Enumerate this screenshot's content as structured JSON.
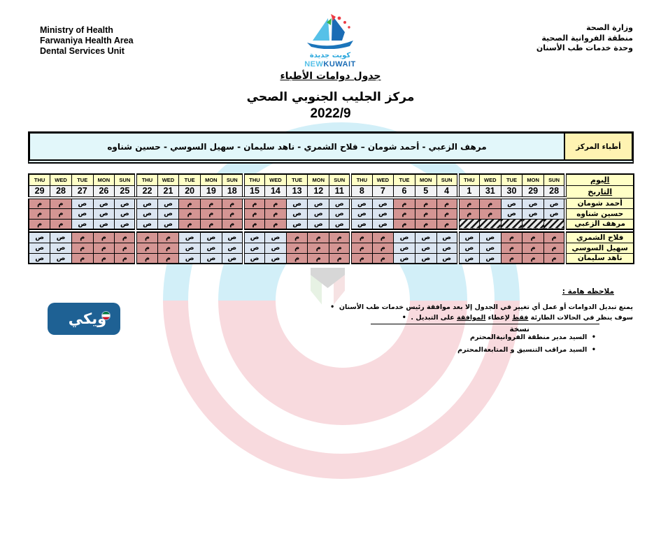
{
  "header": {
    "english_lines": [
      "Ministry of Health",
      "Farwaniya Health Area",
      "Dental Services Unit"
    ],
    "arabic_lines": [
      "وزارة الصحة",
      "منطقة الفروانية الصحية",
      "وحدة خدمات طب الأسنان"
    ],
    "logo": {
      "name": "New Kuwait",
      "arabic_text": "كويت جديدة",
      "latin_light": "NEW",
      "latin_bold": "KUWAIT"
    }
  },
  "titles": {
    "document_title": "جدول دوامات الأطباء",
    "center_name": "مركز الجليب الجنوبي الصحي",
    "period": "2022/9"
  },
  "doctors_bar": {
    "names": "مرهف الزعبي - أحمد شومان – فلاح الشمري - ناهد سليمان - سهيل السوسي - حسين شناوه",
    "label": "أطباء المركز"
  },
  "schedule": {
    "day_label": "اليوم",
    "date_label": "التاريخ",
    "day_names_group_ltr": [
      "THU",
      "WED",
      "TUE",
      "MON",
      "SUN"
    ],
    "groups": 5,
    "dates_ltr": [
      "29",
      "28",
      "27",
      "26",
      "25",
      "22",
      "21",
      "20",
      "19",
      "18",
      "15",
      "14",
      "13",
      "12",
      "11",
      "8",
      "7",
      "6",
      "5",
      "4",
      "1",
      "31",
      "30",
      "29",
      "28"
    ],
    "legend": {
      "morning": "ص",
      "evening": "م",
      "blocked_cell": "hatched"
    },
    "rows": [
      {
        "name": "أحمد شومان",
        "block": 1,
        "shifts_ltr": [
          "م",
          "م",
          "ص",
          "ص",
          "ص",
          "ص",
          "ص",
          "م",
          "م",
          "م",
          "م",
          "م",
          "ص",
          "ص",
          "ص",
          "ص",
          "ص",
          "م",
          "م",
          "م",
          "م",
          "م",
          "ص",
          "ص",
          "ص"
        ]
      },
      {
        "name": "حسين شناوه",
        "block": 1,
        "shifts_ltr": [
          "م",
          "م",
          "ص",
          "ص",
          "ص",
          "ص",
          "ص",
          "م",
          "م",
          "م",
          "م",
          "م",
          "ص",
          "ص",
          "ص",
          "ص",
          "ص",
          "م",
          "م",
          "م",
          "م",
          "م",
          "ص",
          "ص",
          "ص"
        ]
      },
      {
        "name": "مرهف الزعبي",
        "block": 1,
        "shifts_ltr": [
          "م",
          "م",
          "ص",
          "ص",
          "ص",
          "ص",
          "ص",
          "م",
          "م",
          "م",
          "م",
          "م",
          "ص",
          "ص",
          "ص",
          "ص",
          "ص",
          "م",
          "م",
          "م",
          "X",
          "X",
          "X",
          "X",
          "X"
        ]
      },
      {
        "name": "فلاح الشمري",
        "block": 2,
        "shifts_ltr": [
          "ص",
          "ص",
          "م",
          "م",
          "م",
          "م",
          "م",
          "ص",
          "ص",
          "ص",
          "ص",
          "ص",
          "م",
          "م",
          "م",
          "م",
          "م",
          "ص",
          "ص",
          "ص",
          "ص",
          "ص",
          "م",
          "م",
          "م"
        ]
      },
      {
        "name": "سهيل السوسي",
        "block": 2,
        "shifts_ltr": [
          "ص",
          "ص",
          "م",
          "م",
          "م",
          "م",
          "م",
          "ص",
          "ص",
          "ص",
          "ص",
          "ص",
          "م",
          "م",
          "م",
          "م",
          "م",
          "ص",
          "ص",
          "ص",
          "ص",
          "ص",
          "م",
          "م",
          "م"
        ]
      },
      {
        "name": "ناهد سليمان",
        "block": 2,
        "shifts_ltr": [
          "ص",
          "ص",
          "م",
          "م",
          "م",
          "م",
          "م",
          "ص",
          "ص",
          "ص",
          "ص",
          "ص",
          "م",
          "م",
          "م",
          "م",
          "م",
          "ص",
          "ص",
          "ص",
          "ص",
          "ص",
          "م",
          "م",
          "م"
        ]
      }
    ]
  },
  "notes": {
    "title": "ملاحظه هامة :",
    "bullet_marker": "•",
    "bullet1": "يمنع تبديل الدوامات أو عمل أي تغيير في الجدول إلا بعد موافقة رئيس خدمات طب الأسنان",
    "bullet2_parts": [
      {
        "text": "سوف ينظر في الحالات الطارئة ",
        "underline": false
      },
      {
        "text": "فقط",
        "underline": true
      },
      {
        "text": " لإعطاء ",
        "underline": false
      },
      {
        "text": "الموافقة",
        "underline": true
      },
      {
        "text": " على التبديل .",
        "underline": false
      }
    ],
    "copy_label": "نسخة",
    "cc": [
      {
        "name": "السيد مدير منطقة الفروانية",
        "honorific": "المحترم"
      },
      {
        "name": "السيد مراقب التنسيق و المتابعة",
        "honorific": "المحترم"
      }
    ]
  },
  "wiki_badge": {
    "text": "ويكي"
  },
  "colors": {
    "morning_bg": "#dbe5f1",
    "evening_bg": "#d49593",
    "header_yellow": "#ffffc6",
    "bar_label_yellow": "#fff3b2",
    "bar_names_cyan": "#e2f7fa",
    "date_bg": "#f1f2f4",
    "wiki_blue": "#1e6194",
    "watermark_pink": "#f8dade",
    "watermark_cyan": "#d2eff8"
  }
}
